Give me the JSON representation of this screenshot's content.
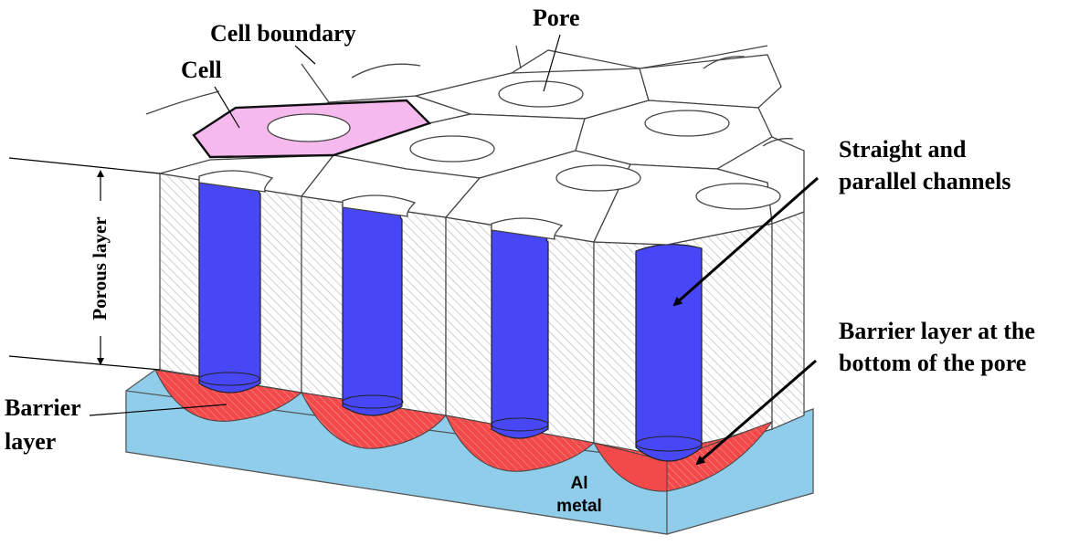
{
  "labels": {
    "cell": "Cell",
    "cell_boundary": "Cell boundary",
    "pore": "Pore",
    "channels_line1": "Straight and",
    "channels_line2": "parallel channels",
    "barrier_bottom_line1": "Barrier layer at the",
    "barrier_bottom_line2": "bottom of the pore",
    "barrier_line1": "Barrier",
    "barrier_line2": "layer",
    "porous_layer": "Porous layer",
    "metal_line1": "Al",
    "metal_line2": "metal"
  },
  "colors": {
    "metal": "#8fcdeb",
    "barrier": "#f24a4a",
    "pore_channel": "#4747f5",
    "highlighted_cell": "#f6b9ee",
    "hatch": "#b9b9b9",
    "outline": "#3b3b3b"
  }
}
